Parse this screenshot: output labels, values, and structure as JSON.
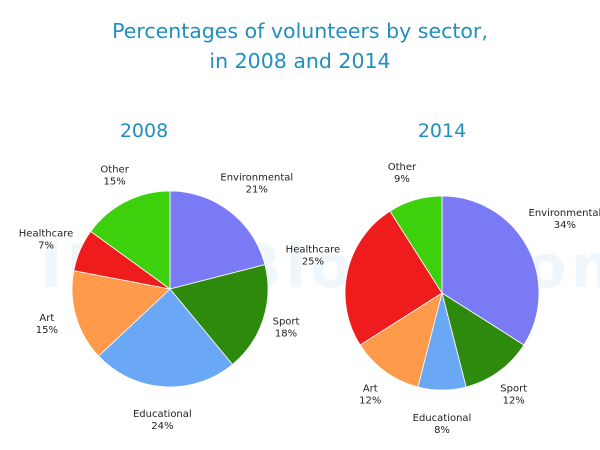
{
  "title": {
    "line1": "Percentages of volunteers by sector,",
    "line2": "in 2008 and 2014"
  },
  "watermark": "IELTSBlogaroom",
  "chart_data": [
    {
      "type": "pie",
      "title": "2008",
      "labels": [
        "Environmental",
        "Sport",
        "Educational",
        "Art",
        "Healthcare",
        "Other"
      ],
      "values": [
        21,
        18,
        24,
        15,
        7,
        15
      ],
      "value_labels": [
        "21%",
        "18%",
        "24%",
        "15%",
        "7%",
        "15%"
      ],
      "colors": [
        "#7a7af5",
        "#2d8a0c",
        "#6aa8f5",
        "#ff9a4a",
        "#ee1c1c",
        "#3cd10c"
      ],
      "start": "12 o'clock",
      "direction": "clockwise"
    },
    {
      "type": "pie",
      "title": "2014",
      "labels": [
        "Environmental",
        "Sport",
        "Educational",
        "Art",
        "Healthcare",
        "Other"
      ],
      "values": [
        34,
        12,
        8,
        12,
        25,
        9
      ],
      "value_labels": [
        "34%",
        "12%",
        "8%",
        "12%",
        "25%",
        "9%"
      ],
      "colors": [
        "#7a7af5",
        "#2d8a0c",
        "#6aa8f5",
        "#ff9a4a",
        "#ee1c1c",
        "#3cd10c"
      ],
      "start": "12 o'clock",
      "direction": "clockwise"
    }
  ]
}
